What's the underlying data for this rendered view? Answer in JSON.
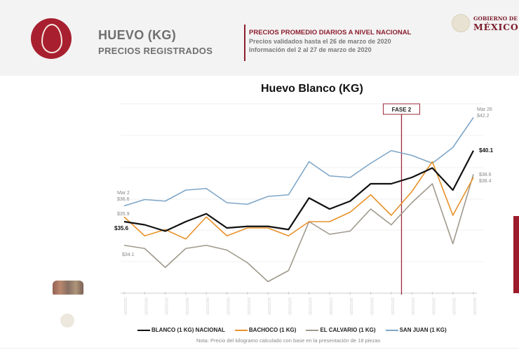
{
  "header": {
    "product_title": "HUEVO (KG)",
    "product_subtitle": "PRECIOS REGISTRADOS",
    "info_title": "PRECIOS PROMEDIO DIARIOS A NIVEL NACIONAL",
    "info_line1": "Precios validados hasta el 26 de marzo de 2020",
    "info_line2": "Información del 2 al 27 de marzo de 2020",
    "gov_line1": "GOBIERNO DE",
    "gov_line2": "MÉXICO",
    "icons": {
      "product": "egg-icon",
      "seal": "coat-of-arms-icon"
    },
    "accent_color": "#a8202f"
  },
  "chart": {
    "title": "Huevo Blanco (KG)",
    "phase_label": "FASE 2",
    "start_label": "Mar 2",
    "end_label": "Mar 26",
    "annotations": {
      "sanjuan_start": "$36.6",
      "bachoco_start": "$35.9",
      "blanco_start": "$35.6",
      "calvario_start": "$34.1",
      "sanjuan_end": "$42.2",
      "blanco_end": "$40.1",
      "calvario_end": "$38.6",
      "bachoco_end": "$38.4"
    },
    "legend": [
      {
        "label": "BLANCO (1 KG) NACIONAL",
        "color": "#111111"
      },
      {
        "label": "BACHOCO (1 KG)",
        "color": "#e8922a"
      },
      {
        "label": "EL CALVARIO (1 KG)",
        "color": "#a09a8c"
      },
      {
        "label": "SAN JUAN (1 KG)",
        "color": "#7fa6c8"
      }
    ],
    "note": "Nota: Precio del kilogramo calculado con base en la presentación de 18 piezas"
  },
  "chart_data": {
    "type": "line",
    "title": "Huevo Blanco (KG)",
    "xlabel": "",
    "ylabel": "",
    "x": [
      "02/03/2020",
      "03/03/2020",
      "04/03/2020",
      "05/03/2020",
      "06/03/2020",
      "09/03/2020",
      "10/03/2020",
      "11/03/2020",
      "12/03/2020",
      "13/03/2020",
      "17/03/2020",
      "18/03/2020",
      "19/03/2020",
      "20/03/2020",
      "23/03/2020",
      "24/03/2020",
      "25/03/2020",
      "26/03/2020"
    ],
    "series": [
      {
        "name": "BLANCO (1 KG) NACIONAL",
        "color": "#111111",
        "values": [
          35.6,
          35.4,
          35.0,
          35.6,
          36.1,
          35.2,
          35.3,
          35.3,
          35.1,
          37.1,
          36.4,
          36.9,
          38.0,
          38.0,
          38.4,
          39.0,
          37.6,
          40.1
        ]
      },
      {
        "name": "BACHOCO (1 KG)",
        "color": "#e8922a",
        "values": [
          35.9,
          34.7,
          35.1,
          34.5,
          35.9,
          34.7,
          35.2,
          35.2,
          34.7,
          35.6,
          35.6,
          36.2,
          37.3,
          36.0,
          37.5,
          39.4,
          36.0,
          38.4
        ]
      },
      {
        "name": "EL CALVARIO (1 KG)",
        "color": "#a09a8c",
        "values": [
          34.1,
          33.9,
          32.7,
          33.9,
          34.1,
          33.8,
          33.0,
          31.8,
          32.5,
          35.6,
          34.8,
          35.0,
          36.4,
          35.4,
          36.8,
          38.0,
          34.2,
          38.6
        ]
      },
      {
        "name": "SAN JUAN (1 KG)",
        "color": "#7fa6c8",
        "values": [
          36.6,
          37.0,
          36.9,
          37.6,
          37.7,
          36.8,
          36.7,
          37.2,
          37.3,
          39.4,
          38.5,
          38.4,
          39.3,
          40.1,
          39.8,
          39.3,
          40.3,
          42.2
        ]
      }
    ],
    "annotations": [
      "Mar 2",
      "Mar 26",
      "FASE 2 (vertical marker between 20/03 and 23/03)"
    ],
    "ylim": [
      31,
      43
    ],
    "grid": true,
    "legend_position": "bottom"
  }
}
